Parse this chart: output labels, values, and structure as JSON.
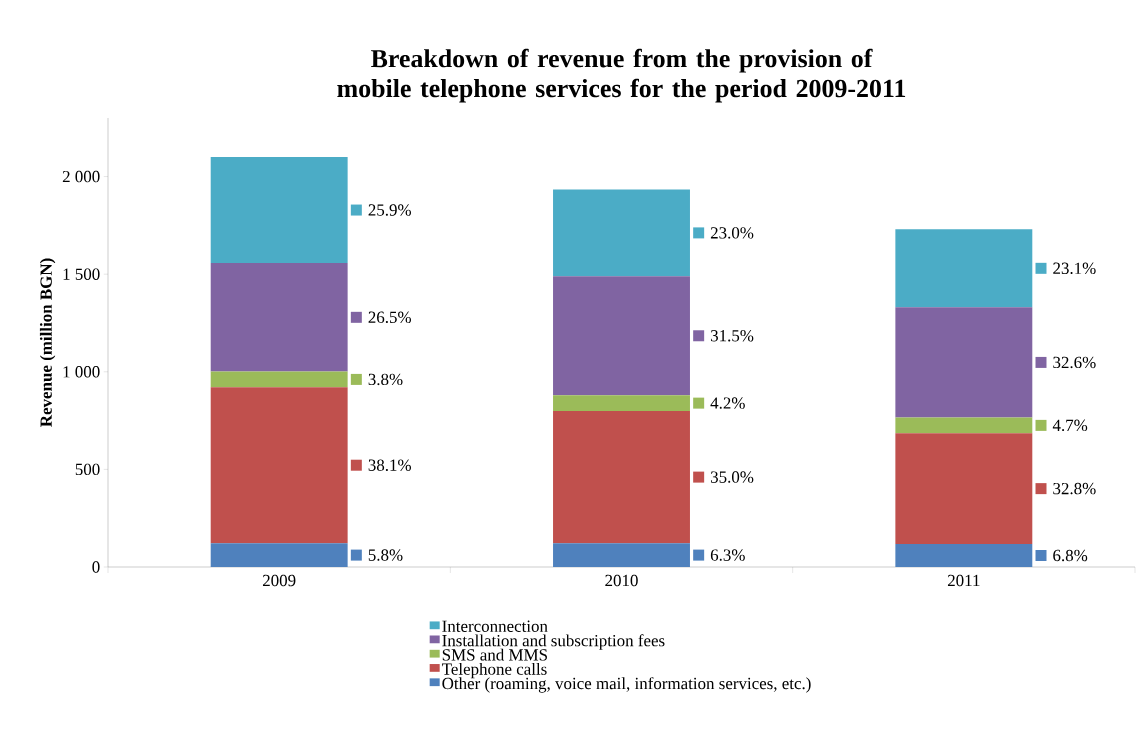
{
  "chart_data": {
    "type": "bar",
    "stacked": true,
    "title": "Breakdown of revenue from the provision of mobile telephone services for the period 2009-2011",
    "ylabel": "Revenue (million BGN)",
    "categories": [
      "2009",
      "2010",
      "2011"
    ],
    "series": [
      {
        "name": "Other (roaming, voice mail, information services, etc.)",
        "color": "#4f81bd",
        "values": [
          122,
          122,
          118
        ]
      },
      {
        "name": "Telephone calls",
        "color": "#c0504d",
        "values": [
          799,
          677,
          567
        ]
      },
      {
        "name": "SMS and MMS",
        "color": "#9bbb59",
        "values": [
          80,
          81,
          81
        ]
      },
      {
        "name": "Installation and subscription fees",
        "color": "#8064a2",
        "values": [
          556,
          609,
          564
        ]
      },
      {
        "name": "Interconnection",
        "color": "#4bacc6",
        "values": [
          543,
          445,
          400
        ]
      }
    ],
    "annotations": [
      "5.8%",
      "38.1%",
      "3.8%",
      "26.5%",
      "25.9%",
      "6.3%",
      "35.0%",
      "4.2%",
      "31.5%",
      "23.0%",
      "6.8%",
      "32.8%",
      "4.7%",
      "32.6%",
      "23.1%"
    ],
    "ylim": [
      0,
      2300
    ],
    "yticks": [
      0,
      500,
      {
        "value": 1000,
        "label": "1 000"
      },
      {
        "value": 1500,
        "label": "1 500"
      },
      {
        "value": 2000,
        "label": "2 000"
      }
    ],
    "grid": false,
    "legend": "bottom"
  }
}
